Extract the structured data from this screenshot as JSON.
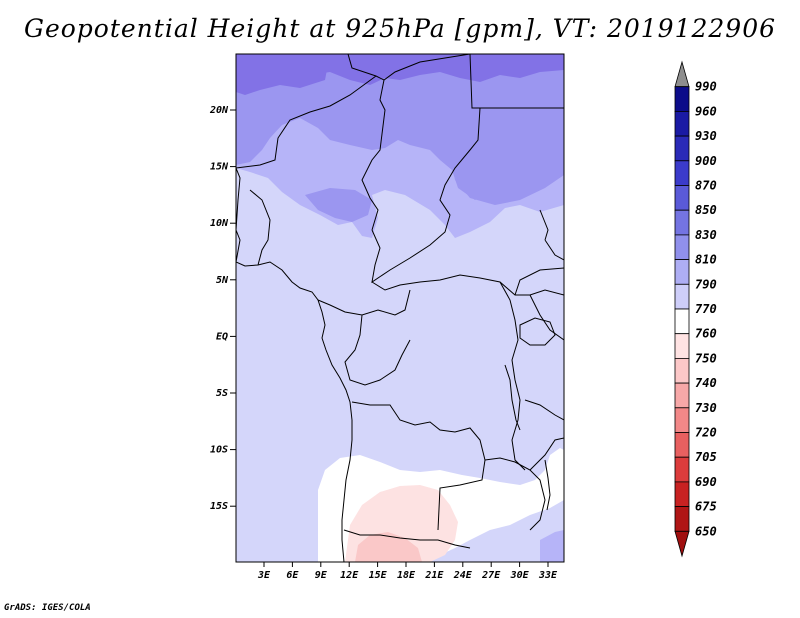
{
  "title": "Geopotential Height at 925hPa [gpm], VT: 2019122906",
  "footer": "GrADS: IGES/COLA",
  "map": {
    "lat_labels": [
      "20N",
      "15N",
      "10N",
      "5N",
      "EQ",
      "5S",
      "10S",
      "15S"
    ],
    "lon_labels": [
      "3E",
      "6E",
      "9E",
      "12E",
      "15E",
      "18E",
      "21E",
      "24E",
      "27E",
      "30E",
      "33E"
    ],
    "field_colors": {
      "dark_purple": "#8272e6",
      "medium_purple": "#9b96f0",
      "light_purple": "#b6b4f8",
      "lavender": "#d4d6fa",
      "white": "#ffffff",
      "light_pink": "#fde2e2",
      "pink": "#fac8c8"
    },
    "border_color": "#000000"
  },
  "colorbar": {
    "levels": [
      "990",
      "960",
      "930",
      "900",
      "870",
      "850",
      "830",
      "810",
      "790",
      "770",
      "760",
      "750",
      "740",
      "730",
      "720",
      "705",
      "690",
      "675",
      "650"
    ],
    "colors": [
      "#8e8e8e",
      "#0c0c8a",
      "#1a1aa4",
      "#2a2ab8",
      "#3b3bcb",
      "#5a5ad8",
      "#7474e2",
      "#9090ec",
      "#aeaef4",
      "#cecef9",
      "#ffffff",
      "#ffe3e3",
      "#fcc8c8",
      "#f7a8a8",
      "#f28888",
      "#e86060",
      "#dc3c3c",
      "#c82222",
      "#b01616",
      "#a00f0f"
    ]
  }
}
